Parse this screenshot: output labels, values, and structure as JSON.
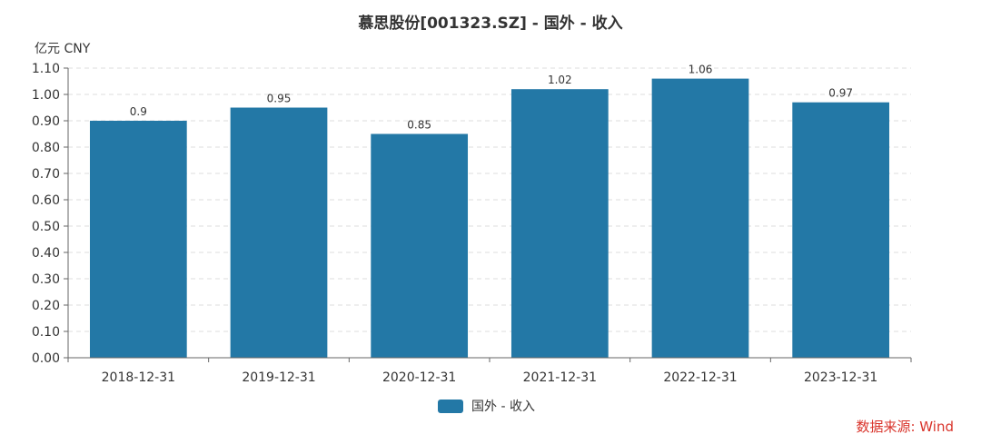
{
  "title": "慕思股份[001323.SZ] - 国外 - 收入",
  "unit_label": "亿元  CNY",
  "source": "数据来源: Wind",
  "colors": {
    "bar": "#2378a6",
    "source": "#d9342b",
    "grid": "#dddddd",
    "axis": "#666666"
  },
  "chart_data": {
    "type": "bar",
    "title": "慕思股份[001323.SZ] - 国外 - 收入",
    "categories": [
      "2018-12-31",
      "2019-12-31",
      "2020-12-31",
      "2021-12-31",
      "2022-12-31",
      "2023-12-31"
    ],
    "series": [
      {
        "name": "国外 - 收入",
        "values": [
          0.9,
          0.95,
          0.85,
          1.02,
          1.06,
          0.97
        ]
      }
    ],
    "value_labels": [
      "0.9",
      "0.95",
      "0.85",
      "1.02",
      "1.06",
      "0.97"
    ],
    "yticks": [
      "0.00",
      "0.10",
      "0.20",
      "0.30",
      "0.40",
      "0.50",
      "0.60",
      "0.70",
      "0.80",
      "0.90",
      "1.00",
      "1.10"
    ],
    "ylim": [
      0,
      1.1
    ],
    "ylabel": "亿元  CNY",
    "grid": true,
    "legend_position": "bottom-center"
  }
}
